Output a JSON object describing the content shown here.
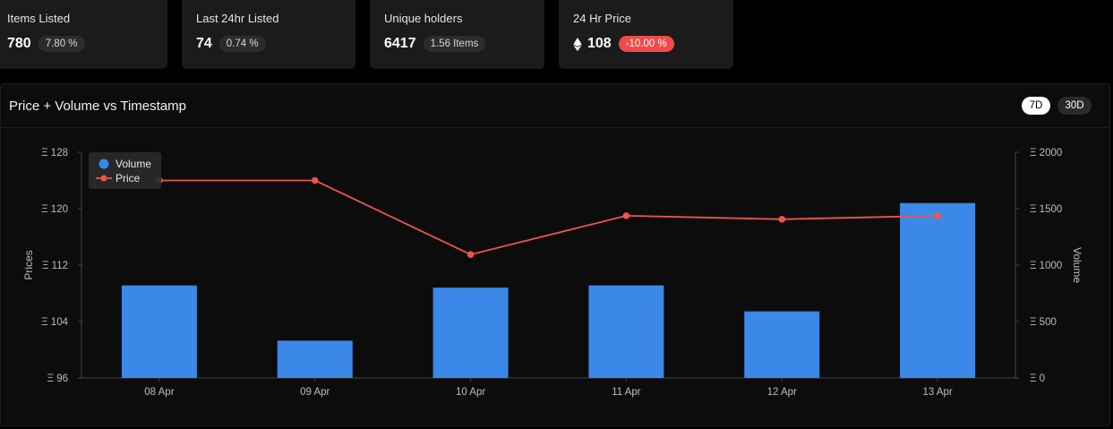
{
  "stats": [
    {
      "title": "Items Listed",
      "value": "780",
      "badge": "7.80 %",
      "badge_type": "neutral",
      "icon": ""
    },
    {
      "title": "Last 24hr Listed",
      "value": "74",
      "badge": "0.74 %",
      "badge_type": "neutral",
      "icon": ""
    },
    {
      "title": "Unique holders",
      "value": "6417",
      "badge": "1.56 Items",
      "badge_type": "neutral",
      "icon": ""
    },
    {
      "title": "24 Hr Price",
      "value": "108",
      "badge": "-10.00 %",
      "badge_type": "negative",
      "icon": "ethereum-icon"
    }
  ],
  "panel": {
    "title": "Price + Volume vs Timestamp",
    "ranges": [
      "7D",
      "30D"
    ],
    "active_range": "7D"
  },
  "colors": {
    "volume": "#3b88e8",
    "price": "#ef5350",
    "badge_negative": "#ef4b4b"
  },
  "chart_data": {
    "type": "bar",
    "categories": [
      "08 Apr",
      "09 Apr",
      "10 Apr",
      "11 Apr",
      "12 Apr",
      "13 Apr"
    ],
    "series": [
      {
        "name": "Volume",
        "type": "bar",
        "axis": "right",
        "values": [
          820,
          330,
          800,
          820,
          590,
          1550
        ]
      },
      {
        "name": "Price",
        "type": "line",
        "axis": "left",
        "values": [
          124,
          124,
          113.5,
          119,
          118.5,
          119
        ]
      }
    ],
    "y_left": {
      "label": "Prices",
      "ticks": [
        "Ξ 128",
        "Ξ 120",
        "Ξ 112",
        "Ξ 104",
        "Ξ 96"
      ],
      "range": [
        96,
        128
      ]
    },
    "y_right": {
      "label": "Volume",
      "ticks": [
        "Ξ 2000",
        "Ξ 1500",
        "Ξ 1000",
        "Ξ 500",
        "Ξ 0"
      ],
      "range": [
        0,
        2000
      ]
    },
    "legend": {
      "position": "top-left",
      "items": [
        "Volume",
        "Price"
      ]
    },
    "grid": false
  }
}
